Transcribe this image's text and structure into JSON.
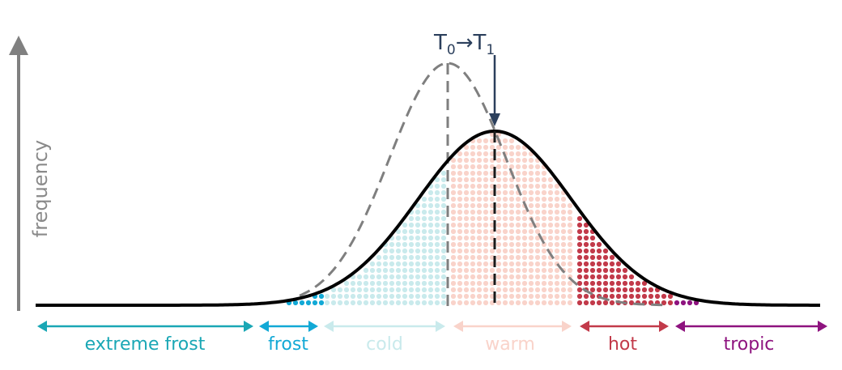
{
  "axis": {
    "ylabel": "frequency"
  },
  "shift_label": {
    "t0": "T",
    "t0_sub": "0",
    "arrow": "→",
    "t1": "T",
    "t1_sub": "1"
  },
  "categories": [
    {
      "key": "extreme_frost",
      "label": "extreme frost",
      "color": "#1aa7b5"
    },
    {
      "key": "frost",
      "label": "frost",
      "color": "#12a9d6"
    },
    {
      "key": "cold",
      "label": "cold",
      "color": "#c9eaec"
    },
    {
      "key": "warm",
      "label": "warm",
      "color": "#f9d3ca"
    },
    {
      "key": "hot",
      "label": "hot",
      "color": "#c23a4a"
    },
    {
      "key": "tropic",
      "label": "tropic",
      "color": "#8e137f"
    }
  ],
  "colors": {
    "axis": "#808080",
    "curve_new": "#000000",
    "curve_old": "#7f7f7f",
    "shift_arrow": "#2b3f5c"
  }
}
